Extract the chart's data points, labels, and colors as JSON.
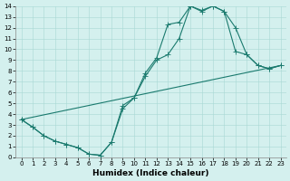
{
  "xlabel": "Humidex (Indice chaleur)",
  "bg_color": "#d4f0ee",
  "grid_color": "#a8d8d4",
  "line_color": "#1a7a6e",
  "xlim": [
    -0.5,
    23.5
  ],
  "ylim": [
    0,
    14
  ],
  "xticks": [
    0,
    1,
    2,
    3,
    4,
    5,
    6,
    7,
    8,
    9,
    10,
    11,
    12,
    13,
    14,
    15,
    16,
    17,
    18,
    19,
    20,
    21,
    22,
    23
  ],
  "yticks": [
    0,
    1,
    2,
    3,
    4,
    5,
    6,
    7,
    8,
    9,
    10,
    11,
    12,
    13,
    14
  ],
  "line1_x": [
    0,
    1,
    2,
    3,
    4,
    5,
    6,
    7,
    8,
    9,
    10,
    11,
    12,
    13,
    14,
    15,
    16,
    17,
    18,
    19,
    20,
    21,
    22,
    23
  ],
  "line1_y": [
    3.5,
    2.8,
    2.0,
    1.5,
    1.2,
    0.9,
    0.3,
    0.2,
    1.4,
    4.5,
    5.5,
    7.5,
    9.0,
    9.5,
    11.0,
    14.0,
    13.5,
    14.0,
    13.5,
    9.8,
    9.5,
    8.5,
    8.2,
    8.5
  ],
  "line2_x": [
    0,
    1,
    2,
    3,
    4,
    5,
    6,
    7,
    8,
    9,
    10,
    11,
    12,
    13,
    14,
    15,
    16,
    17,
    18,
    19,
    20,
    21,
    22,
    23
  ],
  "line2_y": [
    3.5,
    2.8,
    2.0,
    1.5,
    1.2,
    0.9,
    0.3,
    0.2,
    1.4,
    4.8,
    5.5,
    7.8,
    9.2,
    12.3,
    12.5,
    14.0,
    13.6,
    14.0,
    13.5,
    12.0,
    9.5,
    8.5,
    8.2,
    8.5
  ],
  "line3_x": [
    0,
    23
  ],
  "line3_y": [
    3.5,
    8.5
  ],
  "marker_size": 2.0,
  "linewidth": 0.8,
  "tick_fontsize": 5.0,
  "xlabel_fontsize": 6.5
}
